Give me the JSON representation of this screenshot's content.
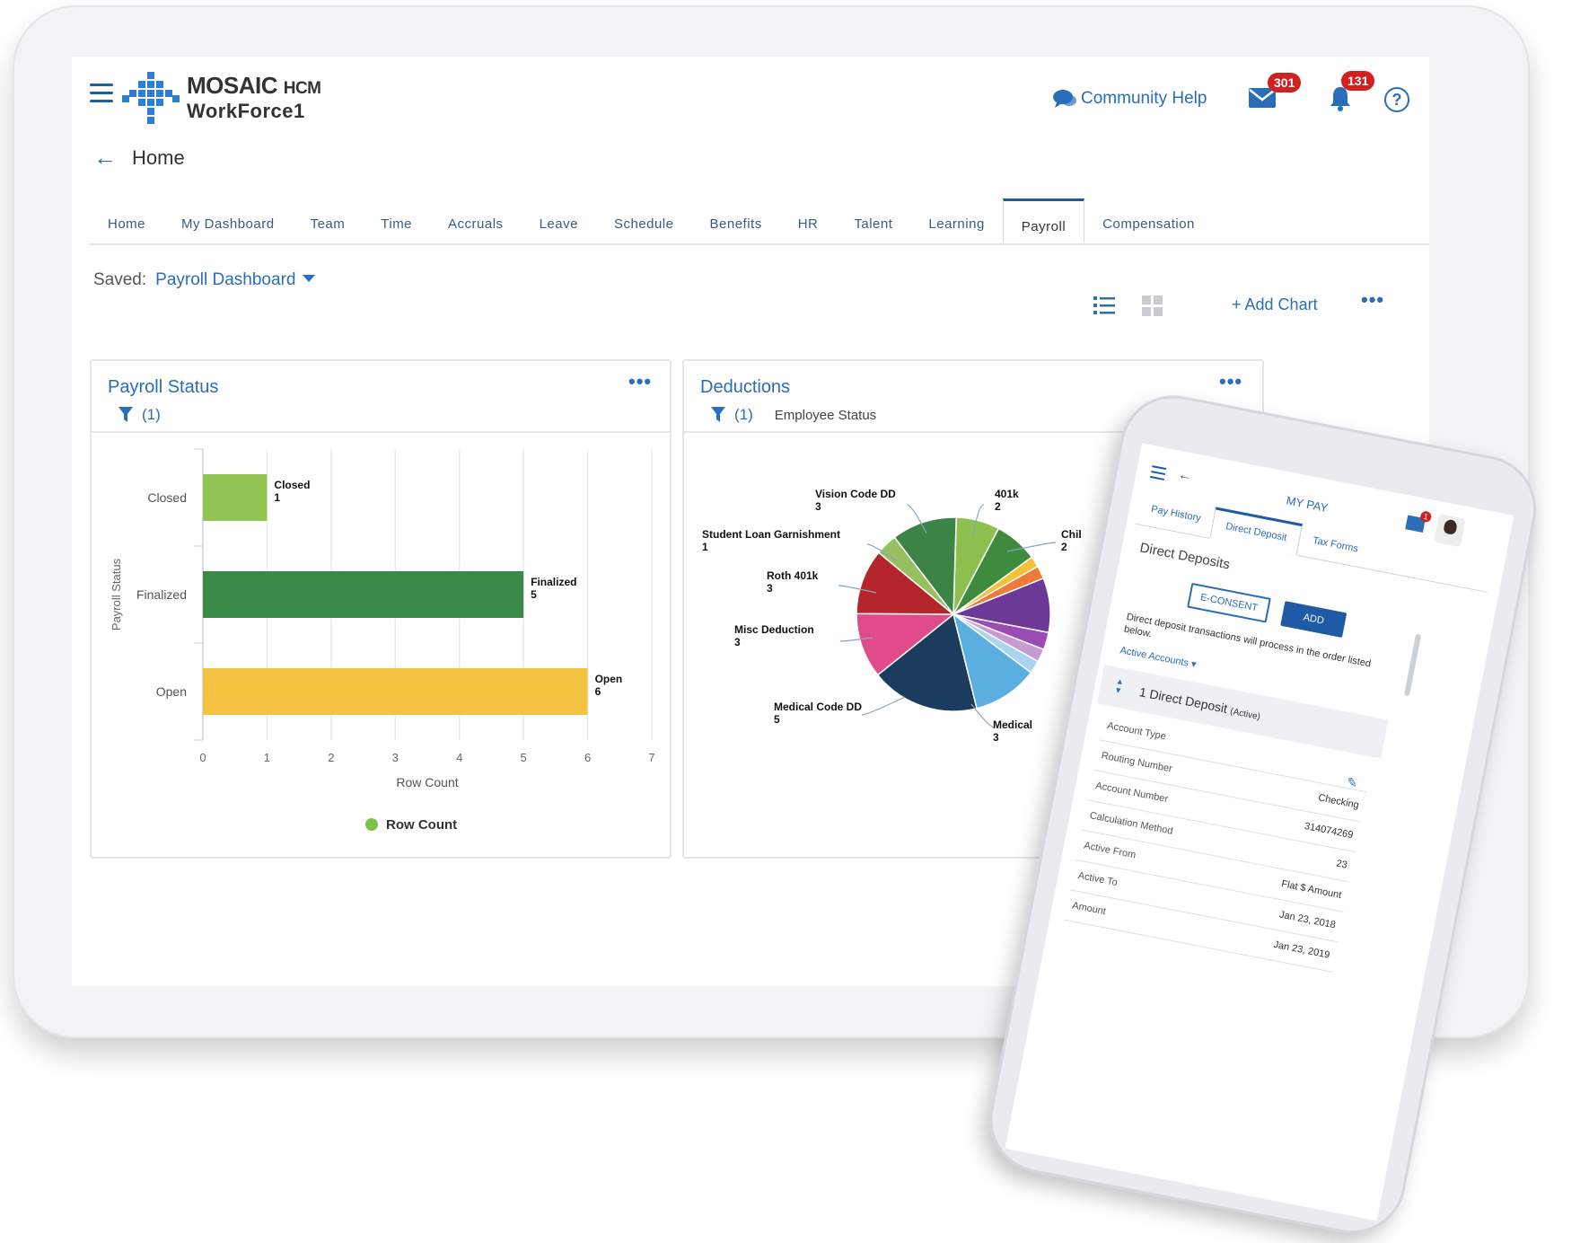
{
  "header": {
    "logo_main": "MOSAIC",
    "logo_hcm": "HCM",
    "logo_sub": "WorkForce1",
    "community_help": "Community Help",
    "mail_count": "301",
    "notification_count": "131",
    "help_symbol": "?"
  },
  "page": {
    "title": "Home"
  },
  "tabs": [
    "Home",
    "My Dashboard",
    "Team",
    "Time",
    "Accruals",
    "Leave",
    "Schedule",
    "Benefits",
    "HR",
    "Talent",
    "Learning",
    "Payroll",
    "Compensation"
  ],
  "active_tab": "Payroll",
  "saved": {
    "label": "Saved:",
    "value": "Payroll Dashboard"
  },
  "toolbar": {
    "add_chart": "Add Chart",
    "add_symbol": "+"
  },
  "payroll_card": {
    "title": "Payroll Status",
    "filter_count": "(1)"
  },
  "deductions_card": {
    "title": "Deductions",
    "filter_count": "(1)",
    "filter_label": "Employee Status"
  },
  "chart_data": [
    {
      "type": "bar",
      "orientation": "horizontal",
      "title": "Payroll Status",
      "categories": [
        "Closed",
        "Finalized",
        "Open"
      ],
      "values": [
        1,
        5,
        6
      ],
      "colors": [
        "#92c353",
        "#3a8a47",
        "#f5c242"
      ],
      "xlabel": "Row Count",
      "ylabel": "Payroll Status",
      "xlim": [
        0,
        7
      ],
      "xticks": [
        0,
        1,
        2,
        3,
        4,
        5,
        6,
        7
      ],
      "legend": [
        "Row Count"
      ],
      "legend_color": "#7ec14a"
    },
    {
      "type": "pie",
      "title": "Deductions",
      "slices": [
        {
          "label": "401k",
          "value": 2,
          "color": "#8cc150"
        },
        {
          "label": "Child Support",
          "value": 2,
          "color": "#3e8b3f"
        },
        {
          "label": "",
          "value": 0.5,
          "color": "#f3c236"
        },
        {
          "label": "",
          "value": 0.6,
          "color": "#ef7a3a"
        },
        {
          "label": "",
          "value": 2.5,
          "color": "#6c3a96"
        },
        {
          "label": "",
          "value": 0.8,
          "color": "#9b4bb2"
        },
        {
          "label": "",
          "value": 0.6,
          "color": "#c69bd2"
        },
        {
          "label": "",
          "value": 0.6,
          "color": "#a9d3f0"
        },
        {
          "label": "Medical",
          "value": 3,
          "color": "#5aaee0"
        },
        {
          "label": "Medical Code DD",
          "value": 5,
          "color": "#1b3c5e"
        },
        {
          "label": "Misc Deduction",
          "value": 3,
          "color": "#e04b8a"
        },
        {
          "label": "Roth 401k",
          "value": 3,
          "color": "#b4262b"
        },
        {
          "label": "Student Loan Garnishment",
          "value": 1,
          "color": "#98c060"
        },
        {
          "label": "Vision Code DD",
          "value": 3,
          "color": "#3b8446"
        }
      ],
      "labels_shown": [
        {
          "label": "Vision Code DD",
          "value": "3"
        },
        {
          "label": "401k",
          "value": "2"
        },
        {
          "label": "Chil",
          "value": "2"
        },
        {
          "label": "Student Loan Garnishment",
          "value": "1"
        },
        {
          "label": "Roth 401k",
          "value": "3"
        },
        {
          "label": "Misc Deduction",
          "value": "3"
        },
        {
          "label": "Medical Code DD",
          "value": "5"
        },
        {
          "label": "Medical",
          "value": "3"
        }
      ]
    }
  ],
  "phone": {
    "title": "MY PAY",
    "tabs": [
      "Pay History",
      "Direct Deposit",
      "Tax Forms"
    ],
    "heading": "Direct Deposits",
    "econsent": "E-CONSENT",
    "add": "ADD",
    "note": "Direct deposit transactions will process in the order listed below.",
    "active_accounts": "Active Accounts",
    "section_label": "1 Direct Deposit",
    "section_status": "(Active)",
    "mail_badge": "1",
    "rows": [
      {
        "k": "Account Type",
        "v": ""
      },
      {
        "k": "Routing Number",
        "v": "Checking"
      },
      {
        "k": "Account Number",
        "v": "314074269"
      },
      {
        "k": "Calculation Method",
        "v": "23"
      },
      {
        "k": "Active From",
        "v": "Flat $ Amount"
      },
      {
        "k": "Active To",
        "v": "Jan 23, 2018"
      },
      {
        "k": "Amount",
        "v": "Jan 23, 2019"
      }
    ]
  }
}
